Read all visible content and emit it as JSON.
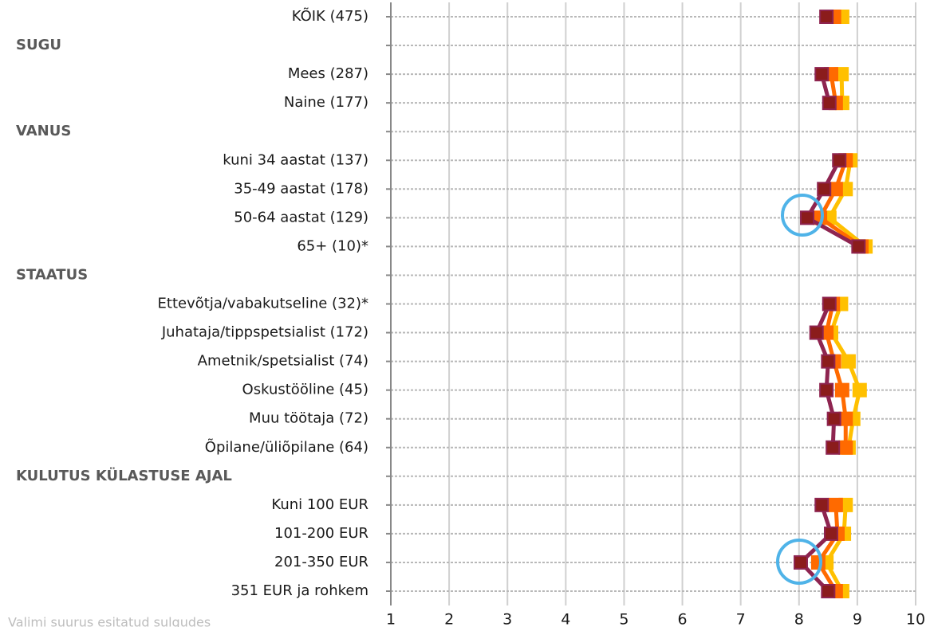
{
  "chart_data": {
    "type": "line",
    "orientation": "horizontal",
    "categories": [
      "KÕIK (475)",
      "SUGU",
      "Mees (287)",
      "Naine (177)",
      "VANUS",
      "kuni 34 aastat (137)",
      "35-49 aastat (178)",
      "50-64 aastat (129)",
      "65+ (10)*",
      "STAATUS",
      "Ettevõtja/vabakutseline (32)*",
      "Juhataja/tippspetsialist (172)",
      "Ametnik/spetsialist (74)",
      "Oskustööline (45)",
      "Muu töötaja (72)",
      "Õpilane/üliõpilane (64)",
      "KULUTUS KÜLASTUSE AJAL",
      "Kuni 100 EUR",
      "101-200 EUR",
      "201-350 EUR",
      "351 EUR ja rohkem"
    ],
    "series": [
      {
        "color": "#ffc000",
        "values": [
          8.74,
          null,
          8.73,
          8.74,
          null,
          8.88,
          8.8,
          8.52,
          9.14,
          null,
          8.72,
          8.55,
          8.85,
          9.04,
          8.93,
          8.85,
          null,
          8.8,
          8.77,
          8.47,
          8.74
        ]
      },
      {
        "color": "#ff6a00",
        "values": [
          8.6,
          null,
          8.55,
          8.63,
          null,
          8.8,
          8.63,
          8.36,
          9.07,
          null,
          8.58,
          8.47,
          8.6,
          8.74,
          8.8,
          8.8,
          null,
          8.63,
          8.66,
          8.33,
          8.63
        ]
      },
      {
        "color": "#8e2450",
        "values": [
          8.47,
          null,
          8.39,
          8.52,
          null,
          8.69,
          8.43,
          8.14,
          9.02,
          null,
          8.52,
          8.3,
          8.5,
          8.47,
          8.6,
          8.58,
          null,
          8.39,
          8.55,
          8.03,
          8.5
        ]
      }
    ],
    "xlim": [
      1,
      10
    ],
    "xticks": [
      1,
      2,
      3,
      4,
      5,
      6,
      7,
      8,
      9,
      10
    ],
    "grid": true,
    "note": "Valimi suurus esitatud sulgudes"
  }
}
